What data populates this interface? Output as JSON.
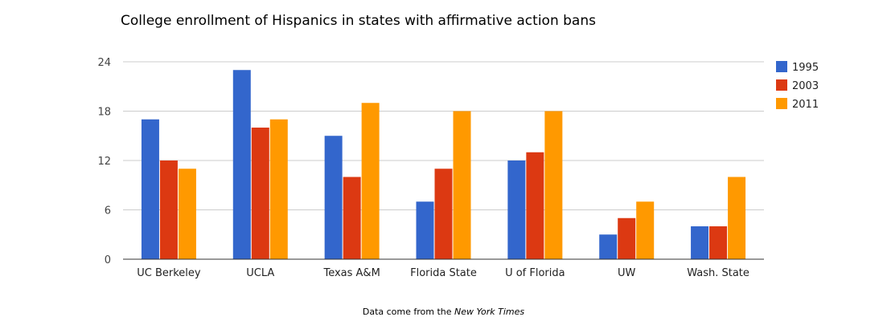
{
  "chart_data": {
    "type": "bar",
    "title": "College enrollment of Hispanics in states with affirmative action bans",
    "categories": [
      "UC Berkeley",
      "UCLA",
      "Texas A&M",
      "Florida State",
      "U of Florida",
      "UW",
      "Wash. State"
    ],
    "series": [
      {
        "name": "1995",
        "color": "#3366cc",
        "values": [
          17,
          23,
          15,
          7,
          12,
          3,
          4
        ]
      },
      {
        "name": "2003",
        "color": "#dc3912",
        "values": [
          12,
          16,
          10,
          11,
          13,
          5,
          4
        ]
      },
      {
        "name": "2011",
        "color": "#ff9900",
        "values": [
          11,
          17,
          19,
          18,
          18,
          7,
          10
        ]
      }
    ],
    "ylim": [
      0,
      24
    ],
    "yticks": [
      0,
      6,
      12,
      18,
      24
    ],
    "grid": true,
    "legend": "right"
  },
  "source": {
    "prefix": "Data come from the ",
    "publication": "New York Times"
  }
}
